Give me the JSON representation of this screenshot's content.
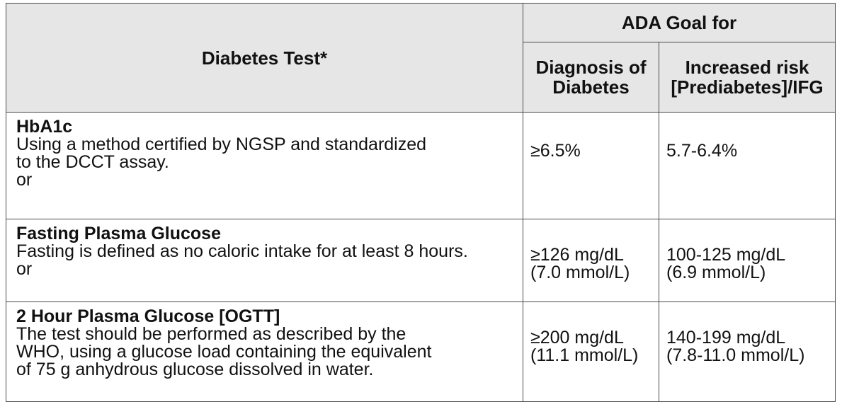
{
  "table": {
    "header": {
      "test_col": "Diabetes Test*",
      "goal_group": "ADA Goal for",
      "diagnosis_col": "Diagnosis of\nDiabetes",
      "risk_col": "Increased risk\n[Prediabetes]/IFG"
    },
    "rows": [
      {
        "name": "HbA1c",
        "description": "Using a method certified by NGSP and standardized\nto the DCCT assay.",
        "connector": "or",
        "diagnosis": "≥6.5%",
        "risk": "5.7-6.4%"
      },
      {
        "name": "Fasting Plasma Glucose",
        "description": "Fasting is defined as no caloric intake for at least 8 hours.",
        "connector": "or",
        "diagnosis": "≥126 mg/dL\n(7.0 mmol/L)",
        "risk": "100-125 mg/dL\n(6.9 mmol/L)"
      },
      {
        "name": "2 Hour Plasma Glucose [OGTT]",
        "description": "The test should be performed as described by the\nWHO, using a glucose load containing the equivalent\nof 75 g anhydrous glucose dissolved in water.",
        "connector": "",
        "diagnosis": "≥200 mg/dL\n(11.1 mmol/L)",
        "risk": "140-199 mg/dL\n(7.8-11.0 mmol/L)"
      }
    ]
  }
}
